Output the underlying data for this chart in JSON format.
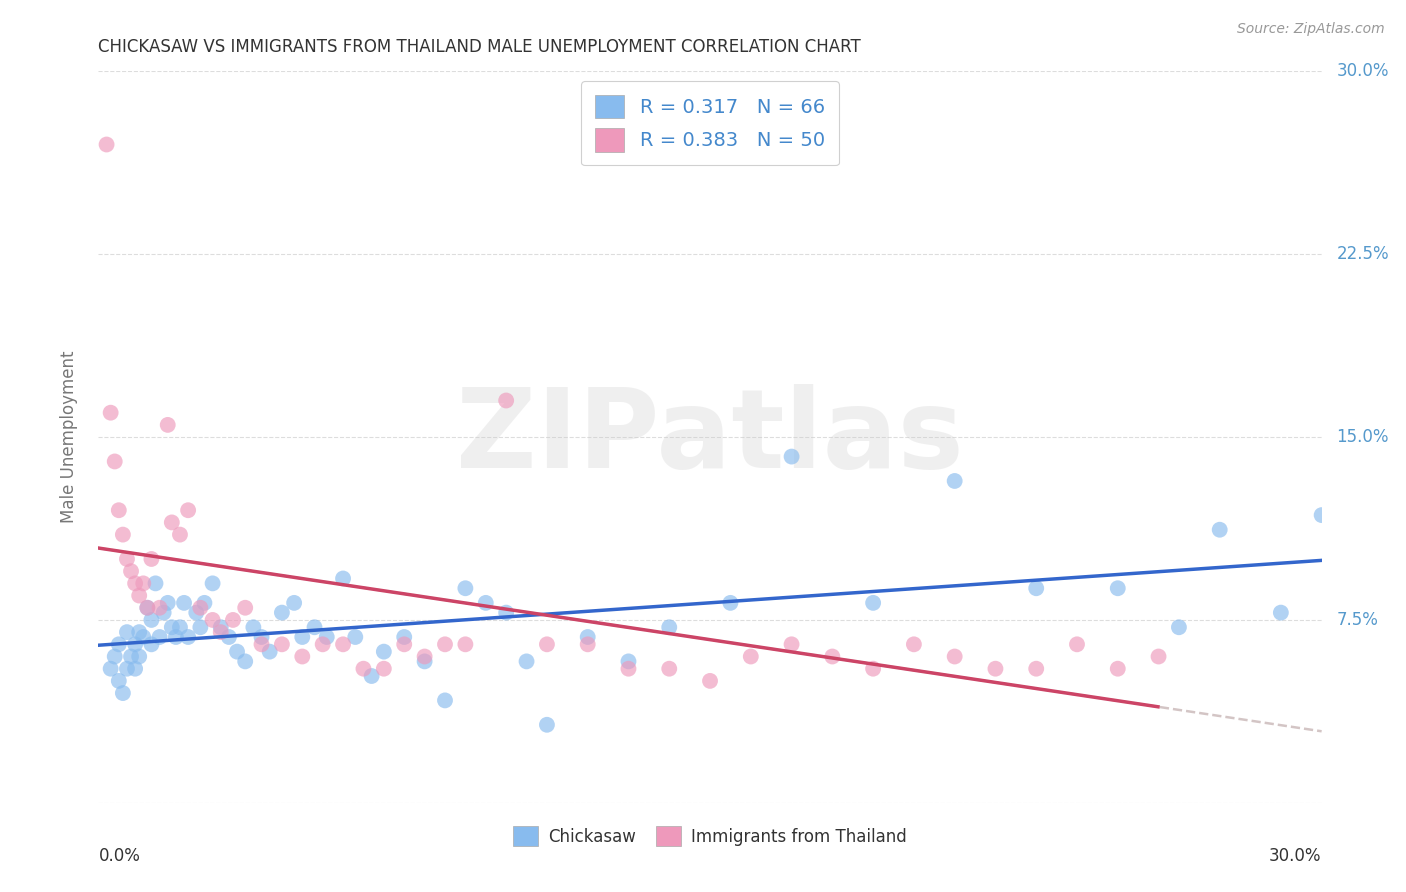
{
  "title": "CHICKASAW VS IMMIGRANTS FROM THAILAND MALE UNEMPLOYMENT CORRELATION CHART",
  "source": "Source: ZipAtlas.com",
  "ylabel": "Male Unemployment",
  "xlim": [
    0.0,
    0.3
  ],
  "ylim": [
    0.0,
    0.3
  ],
  "ytick_vals": [
    0.0,
    0.075,
    0.15,
    0.225,
    0.3
  ],
  "ytick_labels": [
    "",
    "7.5%",
    "15.0%",
    "22.5%",
    "30.0%"
  ],
  "xtick_vals": [
    0.0,
    0.075,
    0.15,
    0.225,
    0.3
  ],
  "watermark": "ZIPatlas",
  "chickasaw_R": 0.317,
  "chickasaw_N": 66,
  "thailand_R": 0.383,
  "thailand_N": 50,
  "chickasaw_color": "#88bbee",
  "thailand_color": "#ee99bb",
  "trendline_chickasaw_color": "#3366cc",
  "trendline_thailand_color": "#cc4466",
  "trendline_thailand_dashed_color": "#ccbbbb",
  "background_color": "#ffffff",
  "grid_color": "#dddddd",
  "title_color": "#333333",
  "source_color": "#999999",
  "ylabel_color": "#777777",
  "tick_label_color": "#5599cc",
  "legend_text_color": "#4488cc",
  "bottom_legend_color": "#333333",
  "chickasaw_x": [
    0.003,
    0.004,
    0.005,
    0.005,
    0.006,
    0.007,
    0.007,
    0.008,
    0.009,
    0.009,
    0.01,
    0.01,
    0.011,
    0.012,
    0.013,
    0.013,
    0.014,
    0.015,
    0.016,
    0.017,
    0.018,
    0.019,
    0.02,
    0.021,
    0.022,
    0.024,
    0.025,
    0.026,
    0.028,
    0.03,
    0.032,
    0.034,
    0.036,
    0.038,
    0.04,
    0.042,
    0.045,
    0.048,
    0.05,
    0.053,
    0.056,
    0.06,
    0.063,
    0.067,
    0.07,
    0.075,
    0.08,
    0.085,
    0.09,
    0.095,
    0.1,
    0.105,
    0.11,
    0.12,
    0.13,
    0.14,
    0.155,
    0.17,
    0.19,
    0.21,
    0.23,
    0.25,
    0.265,
    0.275,
    0.29,
    0.3
  ],
  "chickasaw_y": [
    0.055,
    0.06,
    0.05,
    0.065,
    0.045,
    0.07,
    0.055,
    0.06,
    0.065,
    0.055,
    0.07,
    0.06,
    0.068,
    0.08,
    0.075,
    0.065,
    0.09,
    0.068,
    0.078,
    0.082,
    0.072,
    0.068,
    0.072,
    0.082,
    0.068,
    0.078,
    0.072,
    0.082,
    0.09,
    0.072,
    0.068,
    0.062,
    0.058,
    0.072,
    0.068,
    0.062,
    0.078,
    0.082,
    0.068,
    0.072,
    0.068,
    0.092,
    0.068,
    0.052,
    0.062,
    0.068,
    0.058,
    0.042,
    0.088,
    0.082,
    0.078,
    0.058,
    0.032,
    0.068,
    0.058,
    0.072,
    0.082,
    0.142,
    0.082,
    0.132,
    0.088,
    0.088,
    0.072,
    0.112,
    0.078,
    0.118
  ],
  "thailand_x": [
    0.002,
    0.003,
    0.004,
    0.005,
    0.006,
    0.007,
    0.008,
    0.009,
    0.01,
    0.011,
    0.012,
    0.013,
    0.015,
    0.017,
    0.018,
    0.02,
    0.022,
    0.025,
    0.028,
    0.03,
    0.033,
    0.036,
    0.04,
    0.045,
    0.05,
    0.055,
    0.06,
    0.065,
    0.07,
    0.075,
    0.08,
    0.085,
    0.09,
    0.1,
    0.11,
    0.12,
    0.13,
    0.14,
    0.15,
    0.16,
    0.17,
    0.18,
    0.19,
    0.2,
    0.21,
    0.22,
    0.23,
    0.24,
    0.25,
    0.26
  ],
  "thailand_y": [
    0.27,
    0.16,
    0.14,
    0.12,
    0.11,
    0.1,
    0.095,
    0.09,
    0.085,
    0.09,
    0.08,
    0.1,
    0.08,
    0.155,
    0.115,
    0.11,
    0.12,
    0.08,
    0.075,
    0.07,
    0.075,
    0.08,
    0.065,
    0.065,
    0.06,
    0.065,
    0.065,
    0.055,
    0.055,
    0.065,
    0.06,
    0.065,
    0.065,
    0.165,
    0.065,
    0.065,
    0.055,
    0.055,
    0.05,
    0.06,
    0.065,
    0.06,
    0.055,
    0.065,
    0.06,
    0.055,
    0.055,
    0.065,
    0.055,
    0.06
  ]
}
